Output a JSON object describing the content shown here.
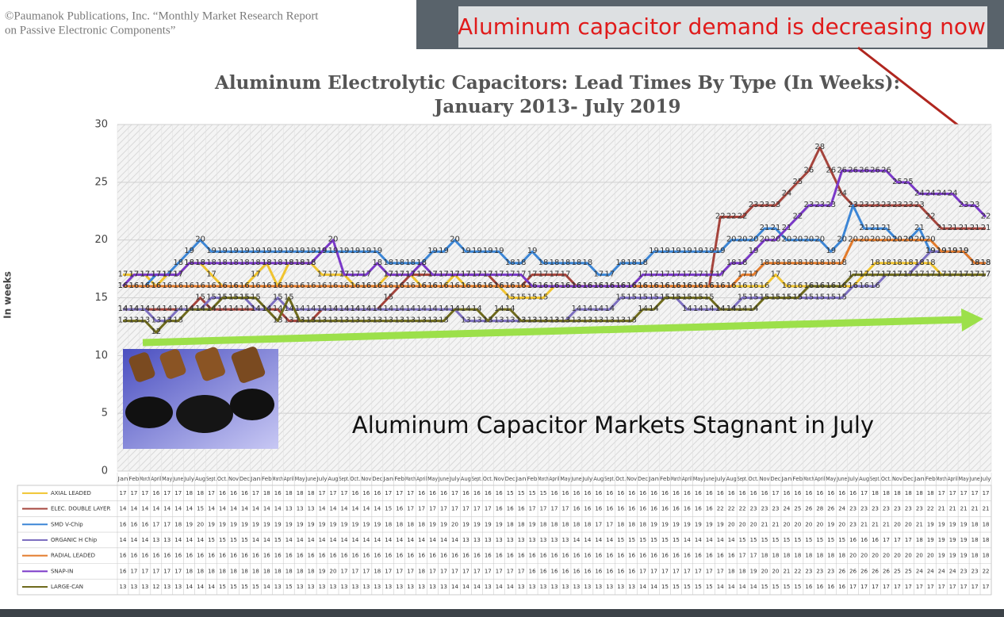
{
  "chart_data": {
    "type": "line",
    "source": [
      "©Paumanok Publications, Inc. “Monthly Market Research Report",
      "on Passive Electronic Components”"
    ],
    "callout": "Aluminum capacitor demand is decreasing now",
    "title": "Aluminum Electrolytic Capacitors: Lead Times By Type (In Weeks):",
    "subtitle": "January 2013- July 2019",
    "y_label": "In weeks",
    "annotation": "Aluminum Capacitor Markets Stagnant in July",
    "ylim": [
      0,
      30
    ],
    "yticks": [
      0,
      5,
      10,
      15,
      20,
      25,
      30
    ],
    "grid": true,
    "categories": [
      "Jan",
      "Feb",
      "March",
      "April",
      "May",
      "June",
      "July",
      "Aug",
      "Sept.",
      "Oct.",
      "Nov",
      "Dec",
      "Jan",
      "Feb",
      "March",
      "April",
      "May",
      "June",
      "July",
      "Aug",
      "Sept.",
      "Oct.",
      "Nov",
      "Dec",
      "Jan",
      "Feb",
      "March",
      "April",
      "May",
      "June",
      "July",
      "Aug",
      "Sept.",
      "Oct.",
      "Nov",
      "Dec",
      "Jan",
      "Feb",
      "March",
      "April",
      "May",
      "June",
      "July",
      "Aug",
      "Sept.",
      "Oct.",
      "Nov",
      "Dec",
      "Jan",
      "Feb",
      "March",
      "April",
      "May",
      "June",
      "July",
      "Aug",
      "Sept.",
      "Oct.",
      "Nov",
      "Dec",
      "Jan",
      "Feb",
      "March",
      "April",
      "May",
      "June",
      "July",
      "Aug",
      "Sept.",
      "Oct.",
      "Nov",
      "Dec",
      "Jan",
      "Feb",
      "March",
      "April",
      "May",
      "June",
      "July"
    ],
    "series": [
      {
        "name": "AXIAL LEADED",
        "color": "#f0c430",
        "values": [
          17,
          17,
          17,
          16,
          17,
          17,
          18,
          18,
          17,
          16,
          16,
          16,
          17,
          18,
          16,
          18,
          18,
          18,
          17,
          17,
          17,
          16,
          16,
          16,
          17,
          17,
          17,
          16,
          16,
          16,
          17,
          16,
          16,
          16,
          16,
          15,
          15,
          15,
          15,
          16,
          16,
          16,
          16,
          16,
          16,
          16,
          16,
          16,
          16,
          16,
          16,
          16,
          16,
          16,
          16,
          16,
          16,
          16,
          16,
          17,
          16,
          16,
          16,
          16,
          16,
          16,
          16,
          17,
          18,
          18,
          18,
          18,
          18,
          18,
          17,
          17,
          17,
          17,
          17
        ]
      },
      {
        "name": "ELEC. DOUBLE LAYER",
        "color": "#a5443c",
        "values": [
          14,
          14,
          14,
          14,
          14,
          14,
          14,
          15,
          14,
          14,
          14,
          14,
          14,
          14,
          14,
          13,
          13,
          13,
          14,
          14,
          14,
          14,
          14,
          14,
          15,
          16,
          17,
          17,
          17,
          17,
          17,
          17,
          17,
          17,
          16,
          16,
          16,
          17,
          17,
          17,
          17,
          16,
          16,
          16,
          16,
          16,
          16,
          16,
          16,
          16,
          16,
          16,
          16,
          16,
          22,
          22,
          22,
          23,
          23,
          23,
          24,
          25,
          26,
          28,
          26,
          24,
          23,
          23,
          23,
          23,
          23,
          23,
          23,
          22,
          21,
          21,
          21,
          21,
          21
        ]
      },
      {
        "name": "SMD V-Chip",
        "color": "#3c86d6",
        "values": [
          16,
          16,
          16,
          17,
          17,
          18,
          19,
          20,
          19,
          19,
          19,
          19,
          19,
          19,
          19,
          19,
          19,
          19,
          19,
          19,
          19,
          19,
          19,
          19,
          18,
          18,
          18,
          18,
          19,
          19,
          20,
          19,
          19,
          19,
          19,
          18,
          18,
          19,
          18,
          18,
          18,
          18,
          18,
          17,
          17,
          18,
          18,
          18,
          19,
          19,
          19,
          19,
          19,
          19,
          19,
          20,
          20,
          20,
          21,
          21,
          20,
          20,
          20,
          20,
          19,
          20,
          23,
          21,
          21,
          21,
          20,
          20,
          21,
          19,
          19,
          19,
          19,
          18,
          18
        ]
      },
      {
        "name": "ORGANIC H Chip",
        "color": "#7d6fc0",
        "values": [
          14,
          14,
          14,
          13,
          13,
          14,
          14,
          14,
          15,
          15,
          15,
          15,
          14,
          14,
          15,
          14,
          14,
          14,
          14,
          14,
          14,
          14,
          14,
          14,
          14,
          14,
          14,
          14,
          14,
          14,
          14,
          13,
          13,
          13,
          13,
          13,
          13,
          13,
          13,
          13,
          13,
          14,
          14,
          14,
          14,
          15,
          15,
          15,
          15,
          15,
          15,
          14,
          14,
          14,
          14,
          14,
          15,
          15,
          15,
          15,
          15,
          15,
          15,
          15,
          15,
          15,
          16,
          16,
          16,
          17,
          17,
          17,
          18,
          19,
          19,
          19,
          19,
          18,
          18
        ]
      },
      {
        "name": "RADIAL LEADED",
        "color": "#e37b2b",
        "values": [
          16,
          16,
          16,
          16,
          16,
          16,
          16,
          16,
          16,
          16,
          16,
          16,
          16,
          16,
          16,
          16,
          16,
          16,
          16,
          16,
          16,
          16,
          16,
          16,
          16,
          16,
          16,
          16,
          16,
          16,
          16,
          16,
          16,
          16,
          16,
          16,
          16,
          16,
          16,
          16,
          16,
          16,
          16,
          16,
          16,
          16,
          16,
          16,
          16,
          16,
          16,
          16,
          16,
          16,
          16,
          16,
          17,
          17,
          18,
          18,
          18,
          18,
          18,
          18,
          18,
          18,
          20,
          20,
          20,
          20,
          20,
          20,
          20,
          20,
          19,
          19,
          19,
          18,
          18
        ]
      },
      {
        "name": "SNAP-IN",
        "color": "#7a38c8",
        "values": [
          16,
          17,
          17,
          17,
          17,
          17,
          18,
          18,
          18,
          18,
          18,
          18,
          18,
          18,
          18,
          18,
          18,
          18,
          19,
          20,
          17,
          17,
          17,
          18,
          17,
          17,
          17,
          18,
          17,
          17,
          17,
          17,
          17,
          17,
          17,
          17,
          17,
          16,
          16,
          16,
          16,
          16,
          16,
          16,
          16,
          16,
          16,
          17,
          17,
          17,
          17,
          17,
          17,
          17,
          17,
          18,
          18,
          19,
          20,
          20,
          21,
          22,
          23,
          23,
          23,
          26,
          26,
          26,
          26,
          26,
          25,
          25,
          24,
          24,
          24,
          24,
          23,
          23,
          22
        ]
      },
      {
        "name": "LARGE-CAN",
        "color": "#6e6a1c",
        "values": [
          13,
          13,
          13,
          12,
          13,
          13,
          14,
          14,
          14,
          15,
          15,
          15,
          15,
          14,
          13,
          15,
          13,
          13,
          13,
          13,
          13,
          13,
          13,
          13,
          13,
          13,
          13,
          13,
          13,
          13,
          14,
          14,
          14,
          13,
          14,
          14,
          13,
          13,
          13,
          13,
          13,
          13,
          13,
          13,
          13,
          13,
          13,
          14,
          14,
          15,
          15,
          15,
          15,
          15,
          14,
          14,
          14,
          14,
          15,
          15,
          15,
          15,
          16,
          16,
          16,
          16,
          17,
          17,
          17,
          17,
          17,
          17,
          17,
          17,
          17,
          17,
          17,
          17,
          17
        ]
      }
    ]
  }
}
